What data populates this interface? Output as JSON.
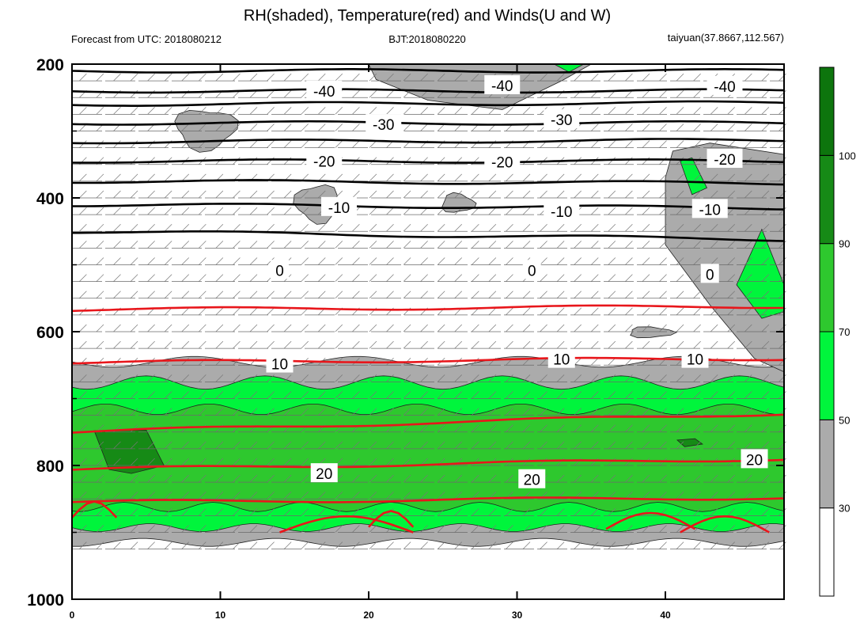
{
  "title": "RH(shaded), Temperature(red) and Winds(U and W)",
  "subtitle_left": "Forecast from UTC: 2018080212",
  "subtitle_center": "BJT:2018080220",
  "subtitle_right": "taiyuan(37.8667,112.567)",
  "colors": {
    "rh_30_50": "#ababab",
    "rh_50_70": "#00f53c",
    "rh_70_90": "#2ec82e",
    "rh_90_100": "#168a16",
    "rh_100_plus": "#0d750d",
    "temperature_line": "#e8161b",
    "isotherm_line": "#000000"
  },
  "chart_data": {
    "type": "heatmap",
    "x": [
      0,
      48
    ],
    "y": [
      200,
      1000
    ],
    "xlim": [
      0,
      48
    ],
    "ylim": [
      1000,
      200
    ],
    "x_ticks": [
      0,
      10,
      20,
      30,
      40
    ],
    "x_tick_labels": [
      "0",
      "10",
      "20",
      "30",
      "40"
    ],
    "y_ticks": [
      200,
      400,
      600,
      800,
      1000
    ],
    "y_tick_labels": [
      "200",
      "400",
      "600",
      "800",
      "1000"
    ],
    "colorbar": {
      "levels": [
        30,
        50,
        70,
        90,
        100
      ],
      "tick_labels": [
        "30",
        "50",
        "70",
        "90",
        "100"
      ],
      "band_colors": [
        "#ffffff",
        "#ababab",
        "#00f53c",
        "#2ec82e",
        "#168a16",
        "#0d750d"
      ]
    },
    "isotherm_labels": [
      "-40",
      "-30",
      "-20",
      "-10",
      "0",
      "10",
      "20"
    ],
    "isotherms": [
      {
        "label": "-40",
        "color": "black",
        "points": [
          [
            0,
            210
          ],
          [
            48,
            210
          ]
        ]
      },
      {
        "label": "-40",
        "color": "black",
        "points": [
          [
            0,
            240
          ],
          [
            48,
            240
          ]
        ]
      },
      {
        "label": "-30",
        "color": "black",
        "points": [
          [
            0,
            260
          ],
          [
            48,
            258
          ]
        ]
      },
      {
        "label": "-30",
        "color": "black",
        "points": [
          [
            0,
            288
          ],
          [
            48,
            288
          ]
        ]
      },
      {
        "label": "-20",
        "color": "black",
        "points": [
          [
            0,
            316
          ],
          [
            48,
            314
          ]
        ]
      },
      {
        "label": "-20",
        "color": "black",
        "points": [
          [
            0,
            345
          ],
          [
            48,
            345
          ]
        ]
      },
      {
        "label": "-10",
        "color": "black",
        "points": [
          [
            0,
            375
          ],
          [
            48,
            378
          ]
        ]
      },
      {
        "label": "-10",
        "color": "black",
        "points": [
          [
            0,
            410
          ],
          [
            48,
            415
          ]
        ]
      },
      {
        "label": "0",
        "color": "black",
        "points": [
          [
            0,
            450
          ],
          [
            48,
            462
          ]
        ]
      },
      {
        "label": "10",
        "color": "red",
        "points": [
          [
            0,
            567
          ],
          [
            48,
            562
          ]
        ]
      },
      {
        "label": "10",
        "color": "red",
        "points": [
          [
            0,
            646
          ],
          [
            48,
            640
          ]
        ]
      },
      {
        "label": "20",
        "color": "red",
        "points": [
          [
            0,
            750
          ],
          [
            48,
            722
          ]
        ]
      },
      {
        "label": "20",
        "color": "red",
        "points": [
          [
            0,
            806
          ],
          [
            48,
            790
          ]
        ]
      },
      {
        "label": "20",
        "color": "red",
        "points": [
          [
            0,
            855
          ],
          [
            48,
            848
          ]
        ]
      }
    ]
  }
}
